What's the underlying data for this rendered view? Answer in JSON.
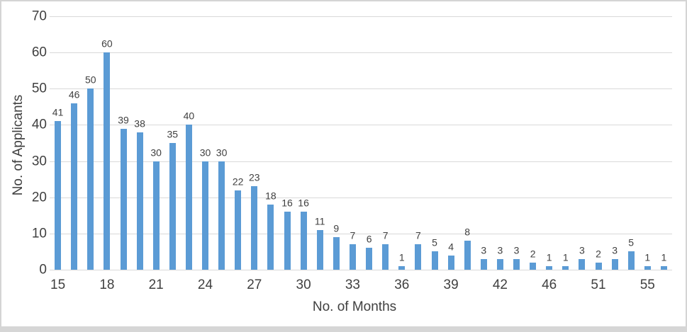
{
  "chart_data": {
    "type": "bar",
    "title": "",
    "xlabel": "No. of Months",
    "ylabel": "No. of Applicants",
    "ylim": [
      0,
      70
    ],
    "y_ticks": [
      0,
      10,
      20,
      30,
      40,
      50,
      60,
      70
    ],
    "grid": "horizontal",
    "legend": "none",
    "data_labels": true,
    "bar_color": "#5b9bd5",
    "gridline_color": "#d9d9d9",
    "text_color": "#404040",
    "values": [
      41,
      46,
      50,
      60,
      39,
      38,
      30,
      35,
      40,
      30,
      30,
      22,
      23,
      18,
      16,
      16,
      11,
      9,
      7,
      6,
      7,
      1,
      7,
      5,
      4,
      8,
      3,
      3,
      3,
      2,
      1,
      1,
      3,
      2,
      3,
      5,
      1,
      1
    ],
    "x_tick_labels": [
      {
        "index": 0,
        "label": "15"
      },
      {
        "index": 3,
        "label": "18"
      },
      {
        "index": 6,
        "label": "21"
      },
      {
        "index": 9,
        "label": "24"
      },
      {
        "index": 12,
        "label": "27"
      },
      {
        "index": 15,
        "label": "30"
      },
      {
        "index": 18,
        "label": "33"
      },
      {
        "index": 21,
        "label": "36"
      },
      {
        "index": 24,
        "label": "39"
      },
      {
        "index": 27,
        "label": "42"
      },
      {
        "index": 30,
        "label": "46"
      },
      {
        "index": 33,
        "label": "51"
      },
      {
        "index": 36,
        "label": "55"
      }
    ]
  }
}
